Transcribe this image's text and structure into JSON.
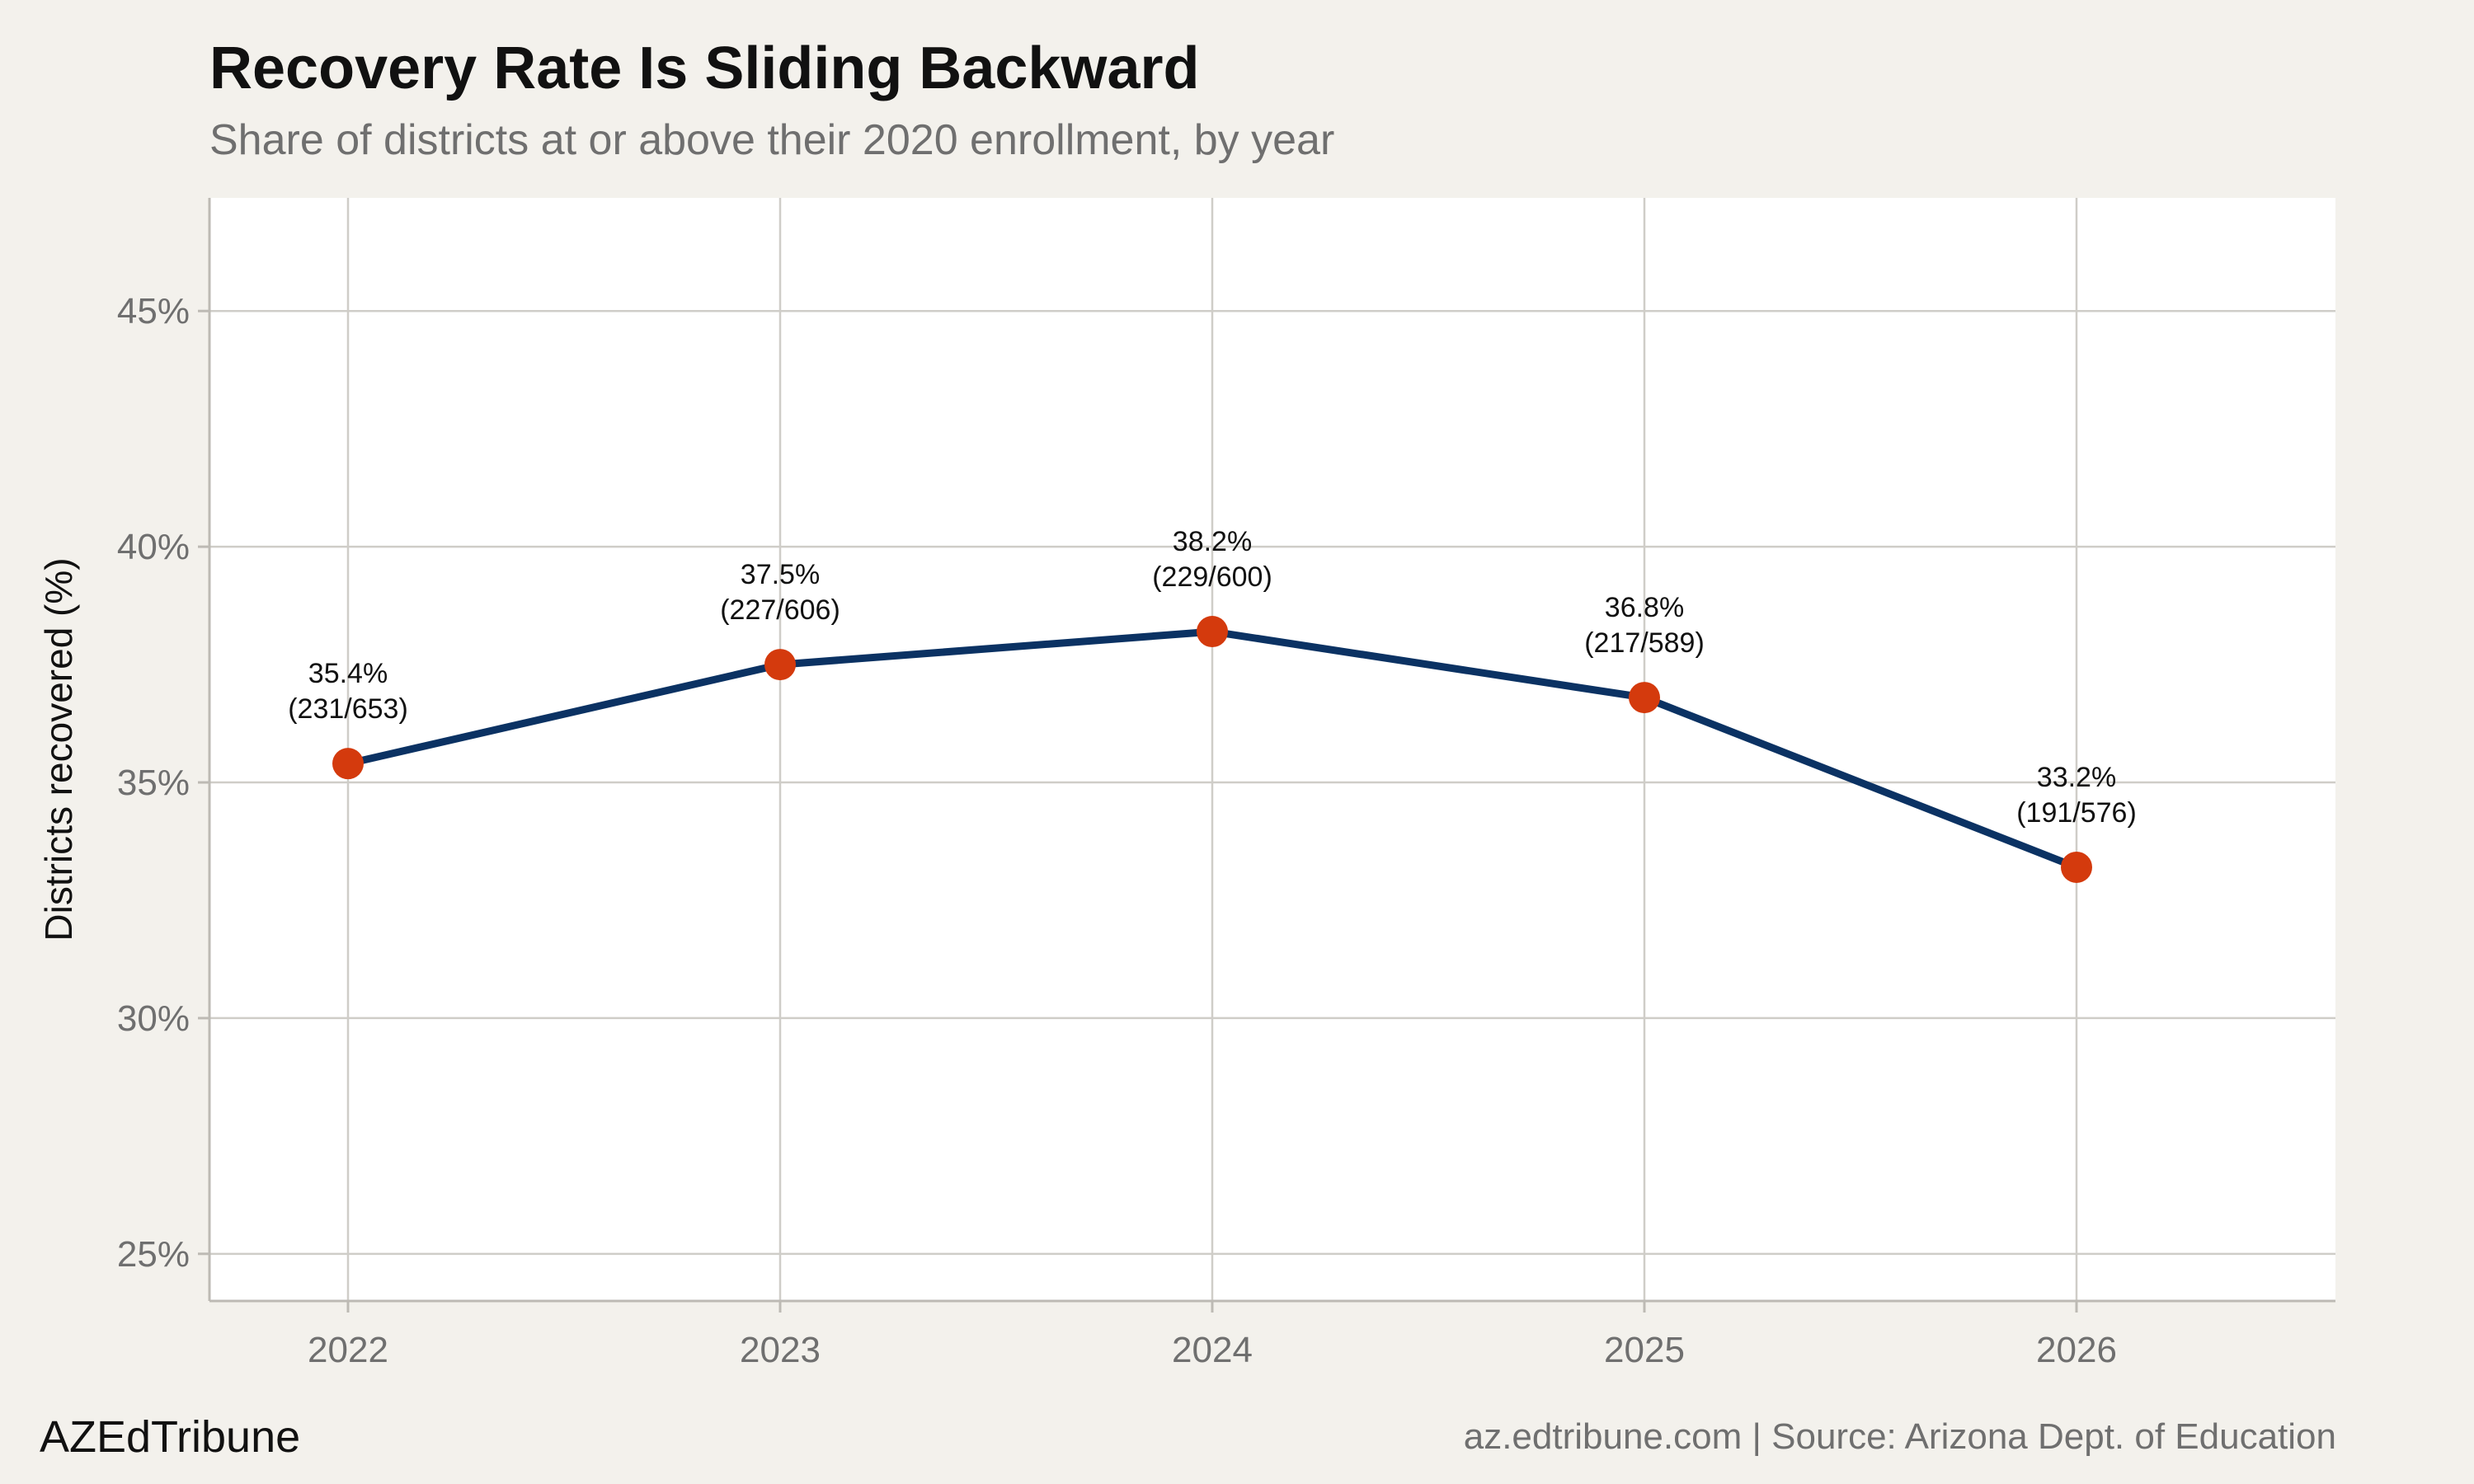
{
  "header": {
    "title": "Recovery Rate Is Sliding Backward",
    "subtitle": "Share of districts at or above their 2020 enrollment, by year"
  },
  "footer": {
    "brand": "AZEdTribune",
    "source": "az.edtribune.com | Source: Arizona Dept. of Education"
  },
  "chart_data": {
    "type": "line",
    "title": "Recovery Rate Is Sliding Backward",
    "subtitle": "Share of districts at or above their 2020 enrollment, by year",
    "xlabel": "",
    "ylabel": "Districts recovered (%)",
    "x": [
      "2022",
      "2023",
      "2024",
      "2025",
      "2026"
    ],
    "values": [
      35.4,
      37.5,
      38.2,
      36.8,
      33.2
    ],
    "labels": [
      [
        "35.4%",
        "(231/653)"
      ],
      [
        "37.5%",
        "(227/606)"
      ],
      [
        "38.2%",
        "(229/600)"
      ],
      [
        "36.8%",
        "(217/589)"
      ],
      [
        "33.2%",
        "(191/576)"
      ]
    ],
    "ylim": [
      24,
      47.4
    ],
    "yticks": [
      25,
      30,
      35,
      40,
      45
    ],
    "ytick_labels": [
      "25%",
      "30%",
      "35%",
      "40%",
      "45%"
    ],
    "grid": true,
    "line_color": "#0b3263",
    "marker_color": "#d43a0d",
    "panel_color": "#ffffff",
    "background_color": "#f3f1ec"
  }
}
